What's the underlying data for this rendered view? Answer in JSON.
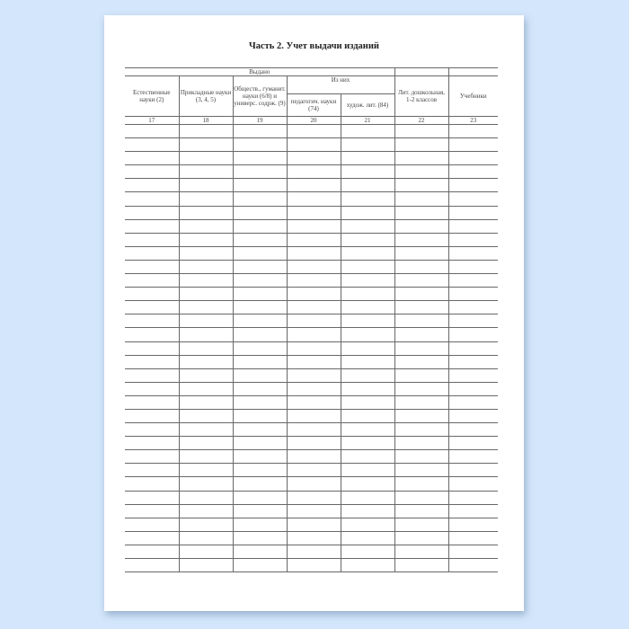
{
  "title": "Часть 2. Учет выдачи изданий",
  "table": {
    "group_issued": "Выдано",
    "subgroup_of_them": "Из них",
    "columns": {
      "natural": "Естественные науки (2)",
      "applied": "Прикладные науки (3, 4, 5)",
      "social": "Обществ., гуманит. науки (6/8) и универс. содрж. (9)",
      "pedagogical": "педагогич. науки (74)",
      "fiction": "худож. лит. (84)",
      "preschool": "Лит. дошкольная, 1-2 классов",
      "textbooks": "Учебники"
    },
    "numbers": [
      "17",
      "18",
      "19",
      "20",
      "21",
      "22",
      "23"
    ]
  }
}
